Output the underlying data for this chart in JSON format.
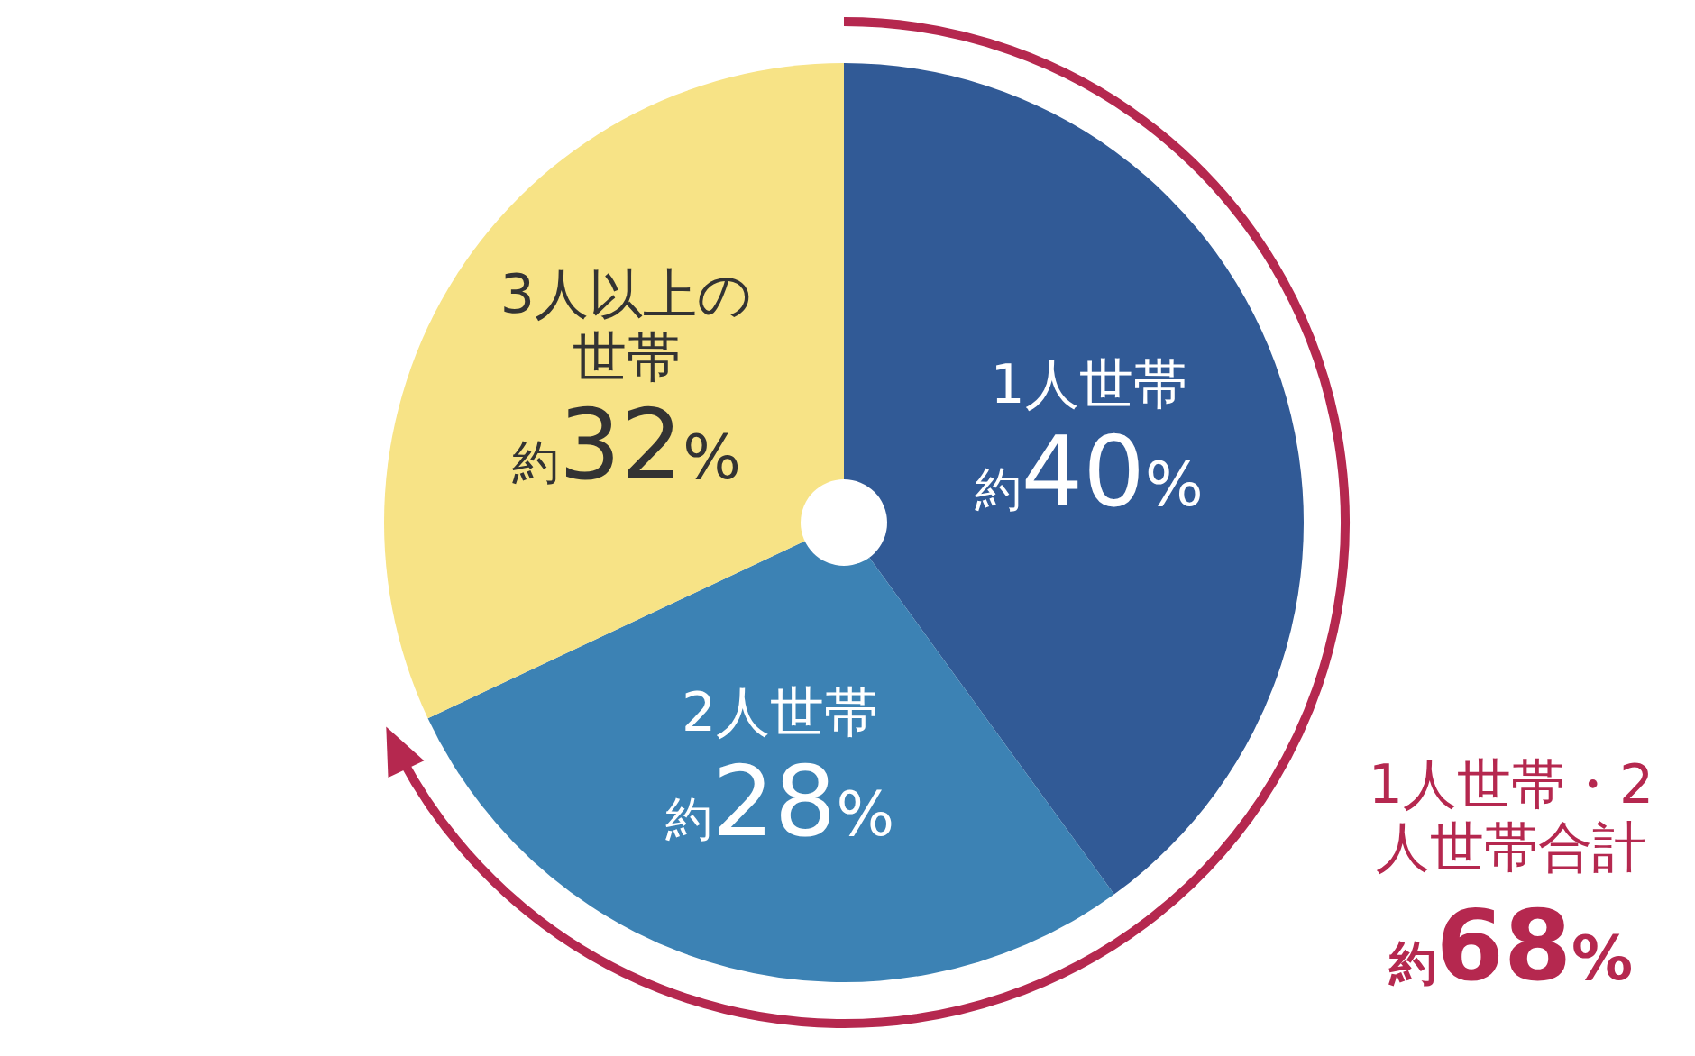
{
  "chart_data": {
    "type": "pie",
    "categories": [
      "1人世帯",
      "2人世帯",
      "3人以上の世帯"
    ],
    "values": [
      40,
      28,
      32
    ],
    "value_labels": [
      "約40%",
      "約28%",
      "約32%"
    ],
    "colors": [
      "#315a96",
      "#3c82b4",
      "#f7e386"
    ],
    "annotations": [
      "1人世帯・2人世帯合計",
      "約68%"
    ]
  }
}
